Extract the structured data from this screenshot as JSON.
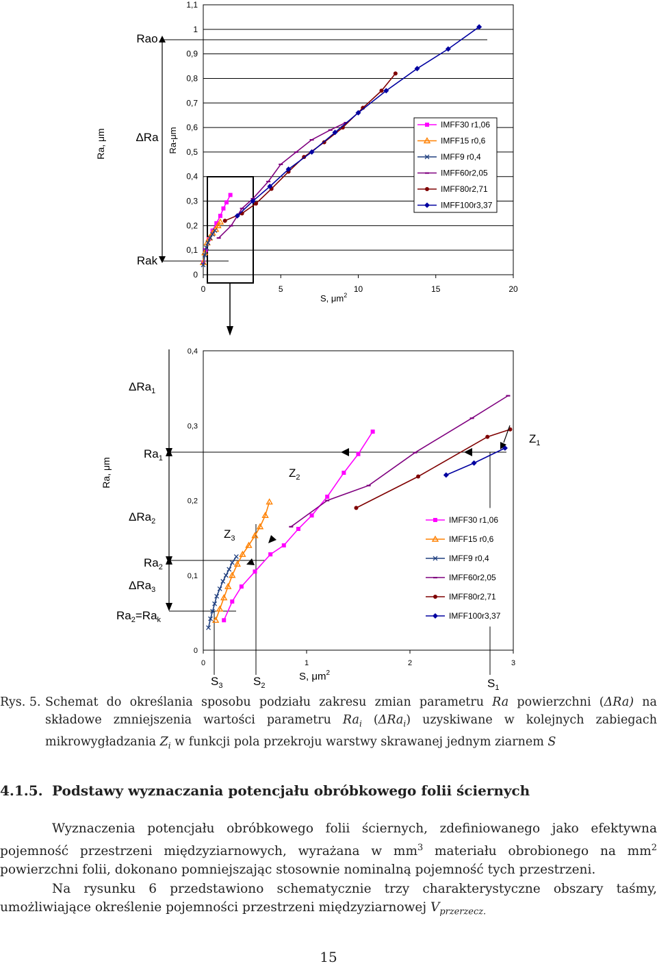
{
  "chart_data": [
    {
      "type": "line",
      "title": "",
      "xlabel": "S, μm",
      "xlabel_sup": "2",
      "ylabel": "Ra-μm",
      "outer_label": "Ra, μm",
      "xlim": [
        0,
        20
      ],
      "ylim": [
        0,
        1.1
      ],
      "x_ticks": [
        "0",
        "5",
        "10",
        "15",
        "20"
      ],
      "y_ticks": [
        "0",
        "0,1",
        "0,2",
        "0,3",
        "0,4",
        "0,5",
        "0,6",
        "0,7",
        "0,8",
        "0,9",
        "1",
        "1,1"
      ],
      "grid": true,
      "legend": "right",
      "annotations": {
        "rao": "Rao",
        "dra": "ΔRa",
        "rak": "Rak"
      },
      "series": [
        {
          "name": "IMFF30 r1,06",
          "color": "#ff00ff",
          "marker": "square",
          "x": [
            0,
            0.15,
            0.35,
            0.6,
            0.85,
            1.1,
            1.3,
            1.5,
            1.75
          ],
          "y": [
            0.05,
            0.1,
            0.145,
            0.18,
            0.21,
            0.24,
            0.27,
            0.295,
            0.325
          ]
        },
        {
          "name": "IMFF15 r0,6",
          "color": "#ff8000",
          "marker": "triangle",
          "x": [
            0,
            0.1,
            0.25,
            0.4,
            0.6,
            0.8,
            0.95,
            1.1
          ],
          "y": [
            0.05,
            0.09,
            0.13,
            0.15,
            0.17,
            0.185,
            0.2,
            0.215
          ]
        },
        {
          "name": "IMFF9 r0,4",
          "color": "#1f3f7f",
          "marker": "x",
          "x": [
            0,
            0.1,
            0.2,
            0.3,
            0.45,
            0.6,
            0.75
          ],
          "y": [
            0.04,
            0.08,
            0.11,
            0.13,
            0.15,
            0.165,
            0.18
          ]
        },
        {
          "name": "IMFF60r2,05",
          "color": "#7f007f",
          "marker": "dash",
          "x": [
            1,
            1.8,
            2.5,
            3.2,
            4.2,
            5,
            6,
            7,
            8.2,
            9.2
          ],
          "y": [
            0.15,
            0.2,
            0.27,
            0.31,
            0.38,
            0.45,
            0.5,
            0.55,
            0.59,
            0.62
          ]
        },
        {
          "name": "IMFF80r2,71",
          "color": "#7f0000",
          "marker": "circle",
          "x": [
            1.4,
            2.5,
            3.4,
            4.4,
            5.5,
            6.5,
            7.8,
            9,
            10.3,
            11.5,
            12.4
          ],
          "y": [
            0.22,
            0.25,
            0.29,
            0.35,
            0.42,
            0.48,
            0.54,
            0.6,
            0.68,
            0.75,
            0.82
          ]
        },
        {
          "name": "IMFF100r3,37",
          "color": "#0000a0",
          "marker": "diamond",
          "x": [
            2.2,
            3.2,
            4.3,
            5.5,
            7,
            8.5,
            10,
            11.8,
            13.8,
            15.8,
            17.8
          ],
          "y": [
            0.24,
            0.3,
            0.36,
            0.43,
            0.5,
            0.58,
            0.66,
            0.75,
            0.84,
            0.92,
            1.01
          ]
        }
      ]
    },
    {
      "type": "line",
      "title": "",
      "xlabel": "S, μm",
      "xlabel_sup": "2",
      "ylabel": "",
      "outer_label": "Ra, μm",
      "xlim": [
        0,
        3
      ],
      "ylim": [
        0,
        0.4
      ],
      "x_ticks": [
        "0",
        "1",
        "2",
        "3"
      ],
      "y_ticks": [
        "0",
        "0,1",
        "0,2",
        "0,3",
        "0,4"
      ],
      "grid": false,
      "legend": "right",
      "annotations": {
        "dra1": "ΔRa",
        "dra1_sub": "1",
        "ra1": "Ra",
        "ra1_sub": "1",
        "dra2": "ΔRa",
        "dra2_sub": "2",
        "ra2": "Ra",
        "ra2_sub": "2",
        "dra3": "ΔRa",
        "dra3_sub": "3",
        "ra2rak_a": "Ra",
        "ra2rak_sub": "2",
        "ra2rak_b": "=Ra",
        "ra2rak_sub2": "k",
        "z1": "Z",
        "z1_sub": "1",
        "z2": "Z",
        "z2_sub": "2",
        "z3": "Z",
        "z3_sub": "3",
        "s1": "S",
        "s1_sub": "1",
        "s2": "S",
        "s2_sub": "2",
        "s3": "S",
        "s3_sub": "3"
      },
      "series": [
        {
          "name": "IMFF30 r1,06",
          "color": "#ff00ff",
          "marker": "square",
          "x": [
            0.2,
            0.28,
            0.37,
            0.5,
            0.65,
            0.78,
            0.92,
            1.05,
            1.2,
            1.36,
            1.5,
            1.64
          ],
          "y": [
            0.04,
            0.065,
            0.085,
            0.105,
            0.128,
            0.14,
            0.162,
            0.18,
            0.205,
            0.237,
            0.262,
            0.292
          ]
        },
        {
          "name": "IMFF15 r0,6",
          "color": "#ff8000",
          "marker": "triangle",
          "x": [
            0.12,
            0.16,
            0.2,
            0.24,
            0.28,
            0.33,
            0.38,
            0.44,
            0.5,
            0.55,
            0.6,
            0.64
          ],
          "y": [
            0.04,
            0.055,
            0.07,
            0.085,
            0.1,
            0.115,
            0.128,
            0.14,
            0.153,
            0.165,
            0.18,
            0.198
          ]
        },
        {
          "name": "IMFF9 r0,4",
          "color": "#1f3f7f",
          "marker": "x",
          "x": [
            0.05,
            0.07,
            0.09,
            0.11,
            0.13,
            0.16,
            0.19,
            0.22,
            0.25,
            0.28,
            0.32
          ],
          "y": [
            0.03,
            0.042,
            0.052,
            0.062,
            0.072,
            0.082,
            0.092,
            0.1,
            0.108,
            0.117,
            0.125
          ]
        },
        {
          "name": "IMFF60r2,05",
          "color": "#7f007f",
          "marker": "dash",
          "x": [
            0.85,
            1.2,
            1.6,
            2.05,
            2.6,
            2.95
          ],
          "y": [
            0.165,
            0.2,
            0.22,
            0.264,
            0.31,
            0.34
          ]
        },
        {
          "name": "IMFF80r2,71",
          "color": "#7f0000",
          "marker": "circle",
          "x": [
            1.48,
            2.08,
            2.75,
            2.97
          ],
          "y": [
            0.19,
            0.232,
            0.285,
            0.295
          ]
        },
        {
          "name": "IMFF100r3,37",
          "color": "#0000a0",
          "marker": "diamond",
          "x": [
            2.35,
            2.62,
            2.92
          ],
          "y": [
            0.234,
            0.25,
            0.27
          ]
        }
      ]
    }
  ],
  "caption": {
    "label": "Rys. 5.",
    "t1": "Schemat do określania sposobu podziału zakresu zmian parametru ",
    "ra": "Ra",
    "t2": " powierzchni (",
    "dra": "ΔRa)",
    "t3": " na składowe zmniejszenia wartości parametru ",
    "rai": "Ra",
    "i1": "i",
    "t4": " (",
    "drai": "ΔRa",
    "i2": "i",
    "t5": ") uzyskiwane w kolejnych zabiegach mikrowygładzania ",
    "z": "Z",
    "i3": "i",
    "t6": " w funkcji pola przekroju warstwy skrawanej jednym ziarnem ",
    "s": "S"
  },
  "section": {
    "number": "4.1.5.",
    "title": "Podstawy wyznaczania potencjału obróbkowego folii ściernych"
  },
  "paragraphs": {
    "p1a": "Wyznaczenia potencjału obróbkowego folii ściernych, zdefiniowanego jako efektywna pojemność przestrzeni międzyziarnowych, wyrażana w mm",
    "p1sup1": "3",
    "p1b": " materiału obrobionego na mm",
    "p1sup2": "2",
    "p1c": " powierzchni folii, dokonano pomniejszając stosownie nominalną pojemność tych przestrzeni.",
    "p2a": "Na rysunku 6 przedstawiono schematycznie trzy charakterystyczne obszary taśmy, umożliwiające określenie pojemności przestrzeni międzyziarnowej ",
    "p2v": "V",
    "p2sub": "przerzecz."
  },
  "page_number": "15"
}
